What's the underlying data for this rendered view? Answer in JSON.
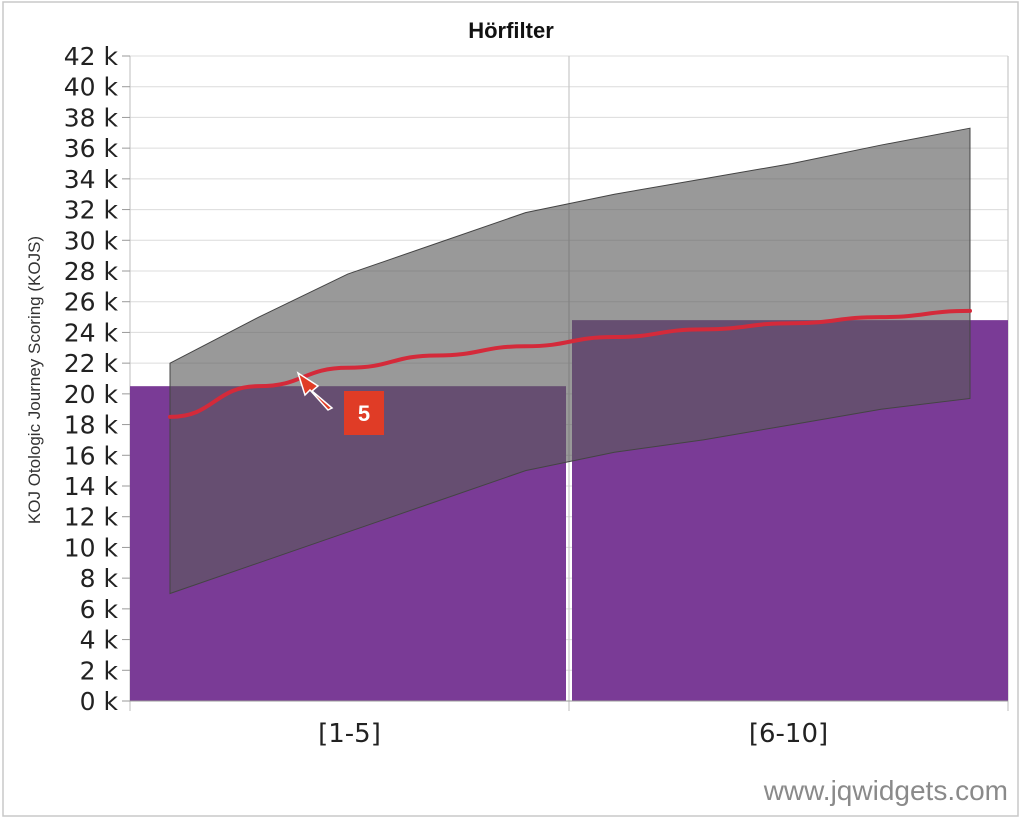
{
  "chart_data": {
    "type": "bar",
    "title": "Hörfilter",
    "ylabel": "KOJ Otologic Journey Scoring (KOJS)",
    "xlabel": "",
    "categories": [
      "[1-5]",
      "[6-10]"
    ],
    "ylim": [
      0,
      42000
    ],
    "y_step": 2000,
    "y_tick_suffix": " k",
    "grid": true,
    "series": [
      {
        "kind": "bar",
        "values": [
          20500,
          24800
        ],
        "color": "#7a3b96"
      },
      {
        "kind": "range-area",
        "color": "#5a5a5a",
        "x": [
          1,
          2,
          3,
          4,
          5,
          6,
          7,
          8,
          9,
          10
        ],
        "low": [
          7000,
          9000,
          11000,
          13000,
          15000,
          16200,
          17000,
          18000,
          19000,
          19700
        ],
        "high": [
          22000,
          25000,
          27800,
          29800,
          31800,
          33000,
          34000,
          35000,
          36200,
          37300
        ]
      },
      {
        "kind": "line",
        "color": "#d42a3a",
        "x": [
          1,
          2,
          3,
          4,
          5,
          6,
          7,
          8,
          9,
          10
        ],
        "values": [
          18500,
          20500,
          21700,
          22500,
          23100,
          23700,
          24200,
          24600,
          25000,
          25400
        ]
      }
    ],
    "annotation": {
      "text": "5",
      "color": "#e03c26"
    }
  },
  "watermark": "www.jqwidgets.com"
}
